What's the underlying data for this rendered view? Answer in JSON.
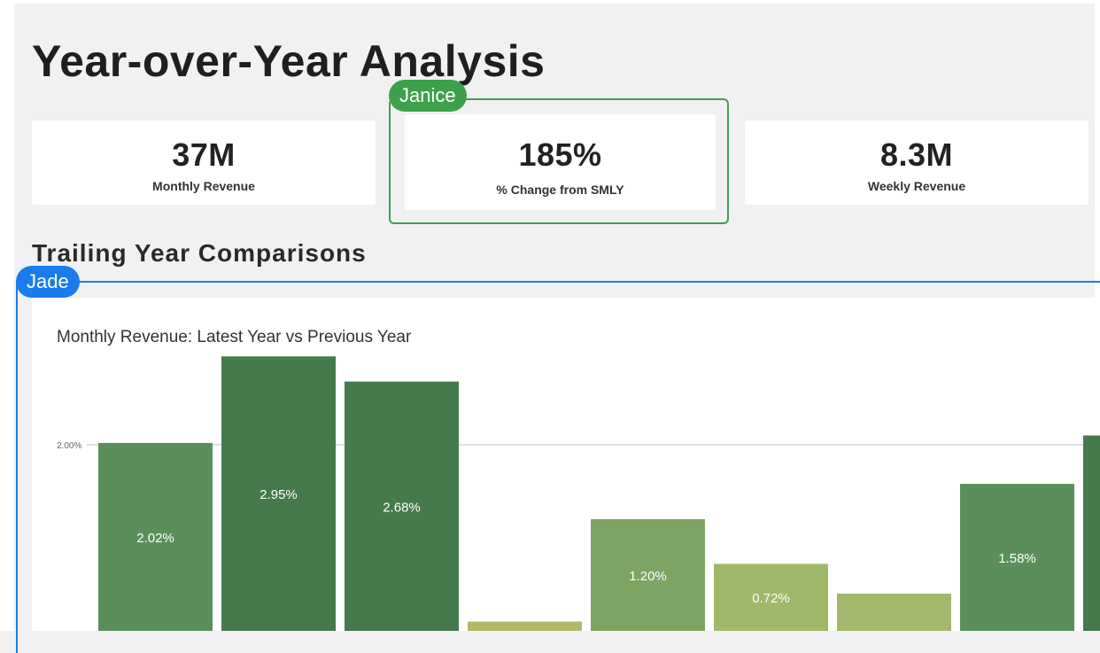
{
  "page": {
    "title": "Year-over-Year Analysis"
  },
  "kpis": [
    {
      "value": "37M",
      "label": "Monthly Revenue"
    },
    {
      "value": "185%",
      "label": "% Change from SMLY"
    },
    {
      "value": "8.3M",
      "label": "Weekly Revenue"
    }
  ],
  "collaborators": [
    {
      "name": "Janice",
      "color": "#3fa04b"
    },
    {
      "name": "Jade",
      "color": "#1a7bec"
    }
  ],
  "section": {
    "title": "Trailing Year Comparisons"
  },
  "chart_data": {
    "type": "bar",
    "title": "Monthly Revenue: Latest Year vs Previous Year",
    "y_ticks": [
      {
        "value": 2.0,
        "label": "2.00%"
      }
    ],
    "grid": true,
    "values": [
      2.02,
      2.95,
      2.68,
      0.1,
      1.2,
      0.72,
      0.4,
      1.58,
      2.1
    ],
    "data_labels": [
      "2.02%",
      "2.95%",
      "2.68%",
      "",
      "1.20%",
      "0.72%",
      "",
      "1.58%",
      ""
    ],
    "colors": [
      "#5a8f5c",
      "#447a4c",
      "#447a4c",
      "#b3b868",
      "#7da463",
      "#a0b86a",
      "#a3b86a",
      "#5a8f5c",
      "#447a4c"
    ]
  }
}
